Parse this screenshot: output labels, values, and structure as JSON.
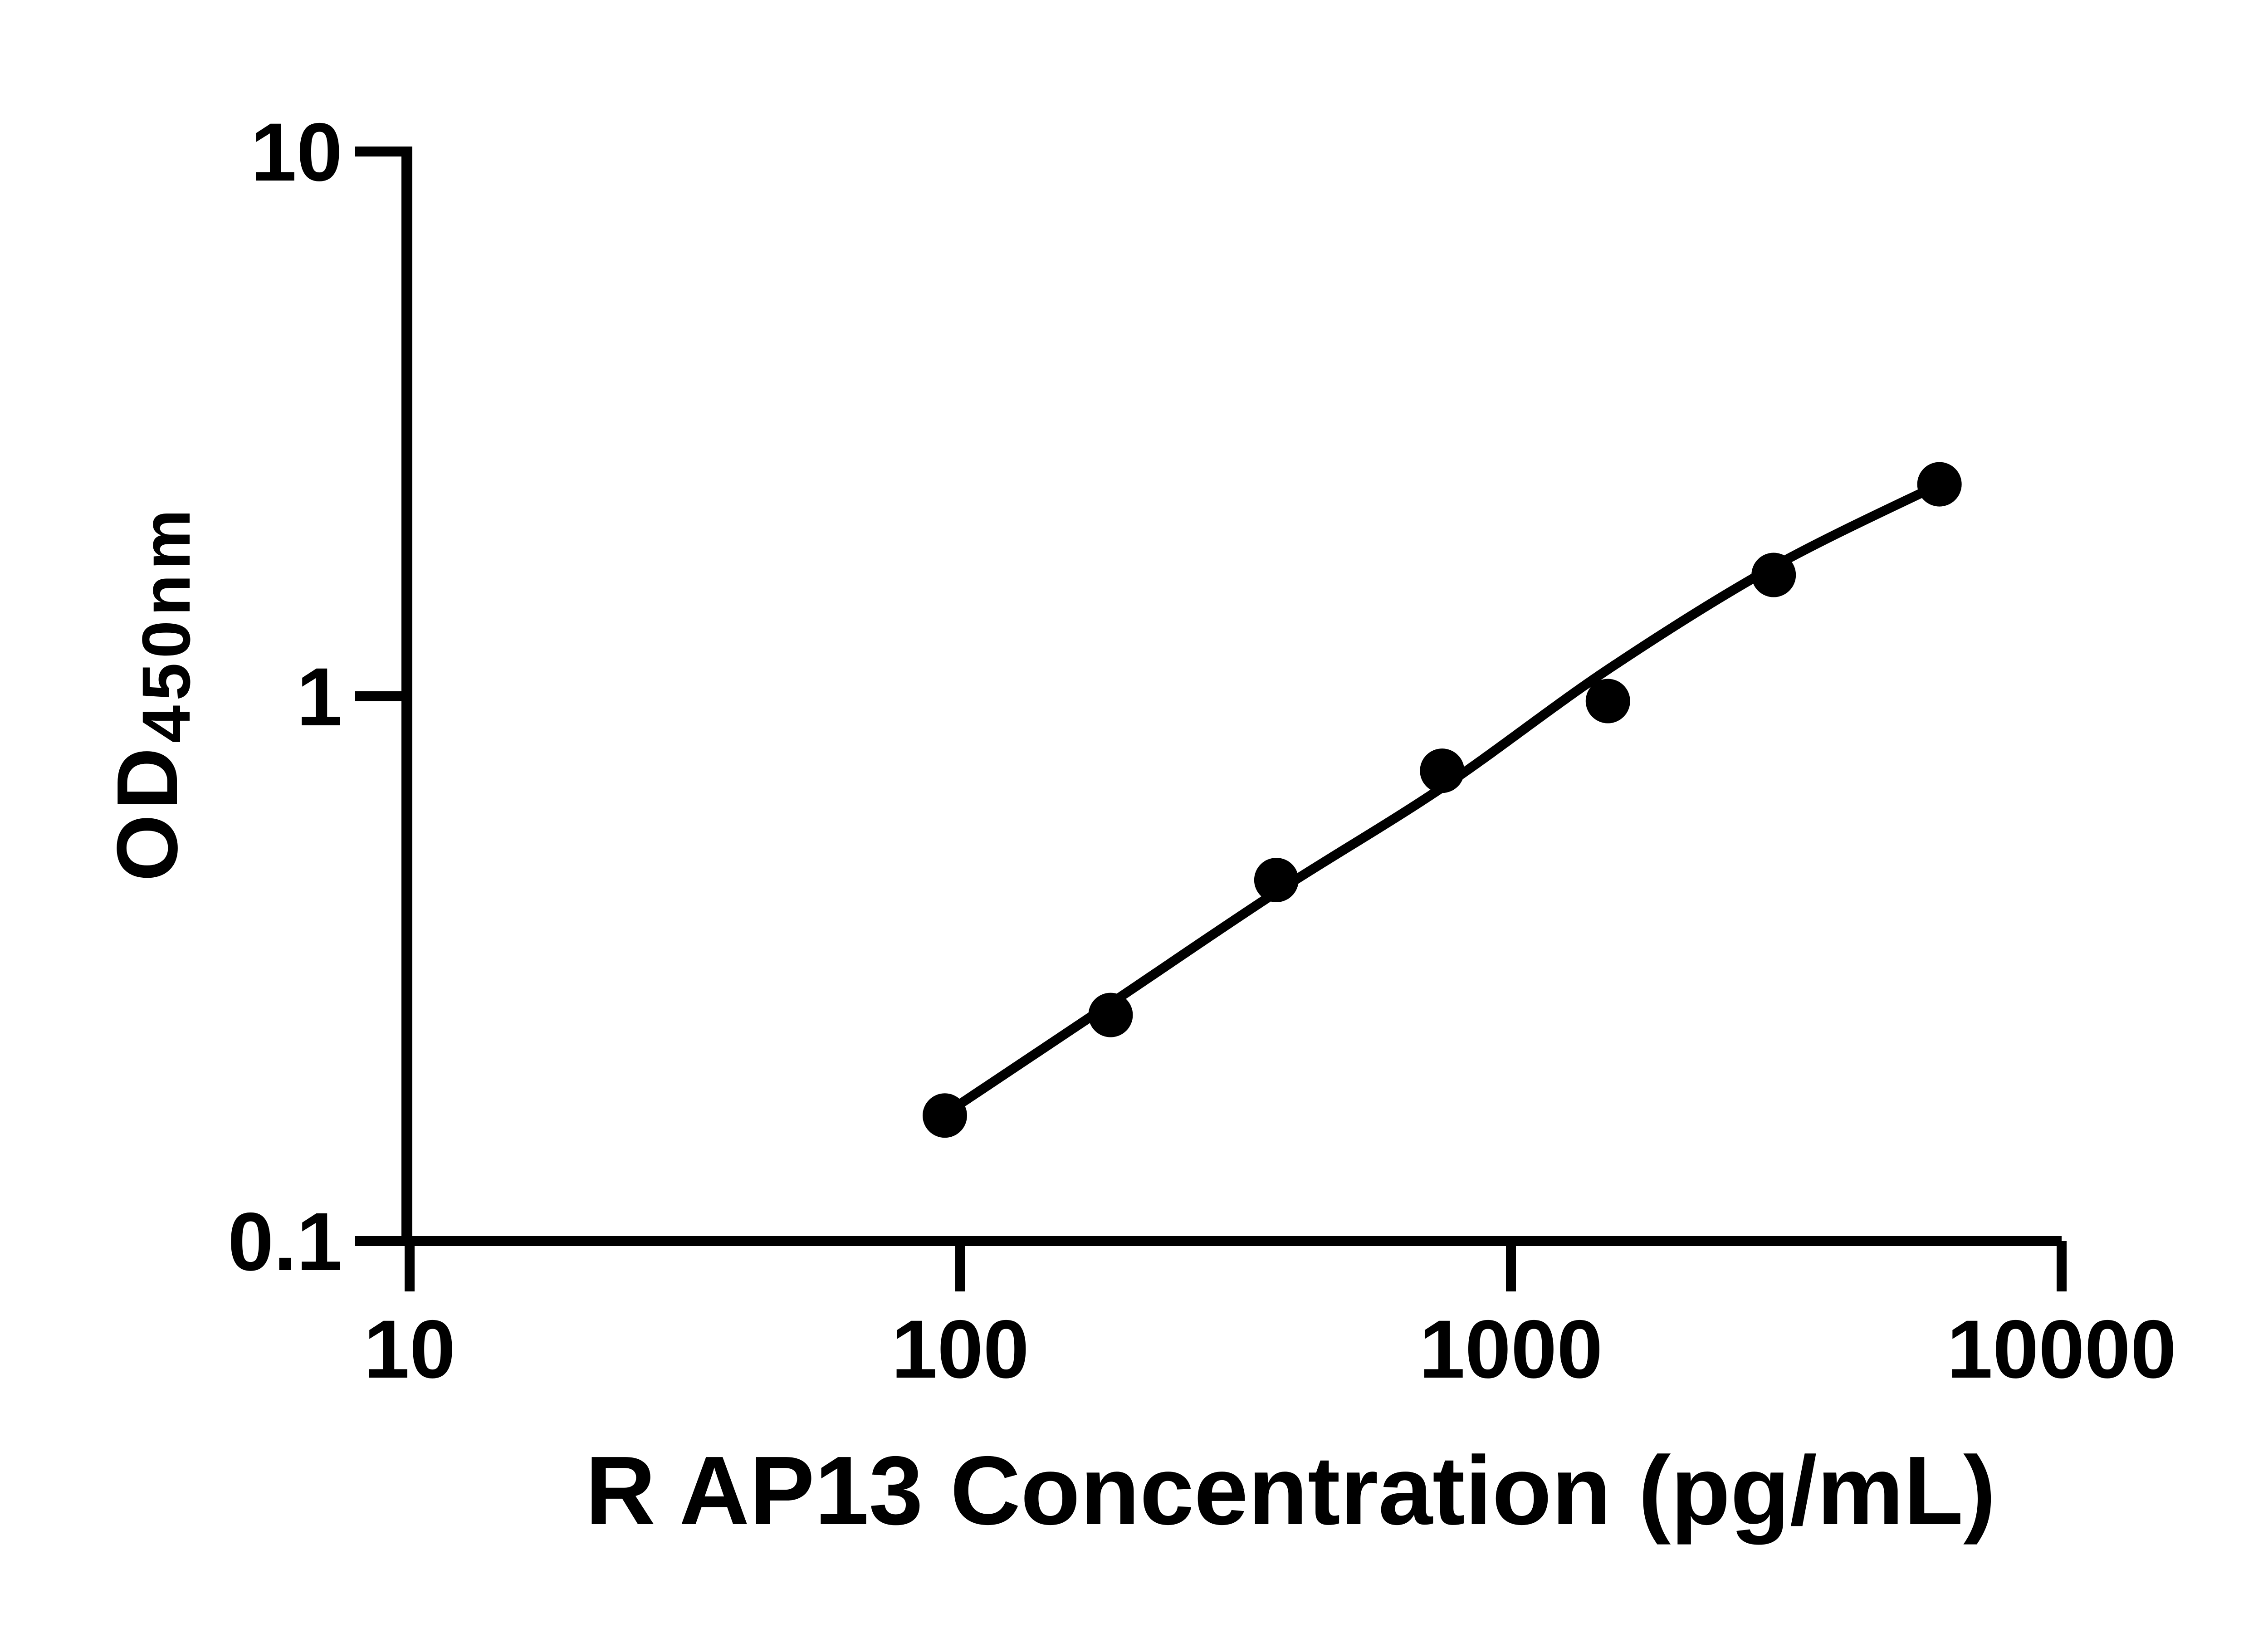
{
  "figure": {
    "background_color": "#ffffff",
    "ink_color": "#000000"
  },
  "chart_data": {
    "type": "scatter",
    "title": "",
    "xlabel": "R AP13 Concentration (pg/mL)",
    "ylabel_main": "OD",
    "ylabel_sub": "450nm",
    "x_scale": "log",
    "y_scale": "log",
    "xlim": [
      10,
      10000
    ],
    "ylim": [
      0.1,
      10
    ],
    "grid": false,
    "legend": "none",
    "x_ticks": [
      {
        "value": 10,
        "label": "10"
      },
      {
        "value": 100,
        "label": "100"
      },
      {
        "value": 1000,
        "label": "1000"
      },
      {
        "value": 10000,
        "label": "10000"
      }
    ],
    "y_ticks": [
      {
        "value": 10,
        "label": "10"
      },
      {
        "value": 1,
        "label": "1"
      },
      {
        "value": 0.1,
        "label": "0.1"
      }
    ],
    "series": [
      {
        "name": "standard-points",
        "marker": "filled-circle",
        "color": "#000000",
        "points": [
          [
            93.75,
            0.17
          ],
          [
            187.5,
            0.26
          ],
          [
            375,
            0.46
          ],
          [
            750,
            0.73
          ],
          [
            1500,
            0.98
          ],
          [
            3000,
            1.67
          ],
          [
            6000,
            2.45
          ]
        ]
      }
    ],
    "fit_line": {
      "name": "standard-curve-fit",
      "color": "#000000",
      "points": [
        [
          93.75,
          0.171
        ],
        [
          187.5,
          0.273
        ],
        [
          375,
          0.437
        ],
        [
          750,
          0.68
        ],
        [
          1500,
          1.12
        ],
        [
          3000,
          1.73
        ],
        [
          6000,
          2.45
        ]
      ]
    }
  }
}
